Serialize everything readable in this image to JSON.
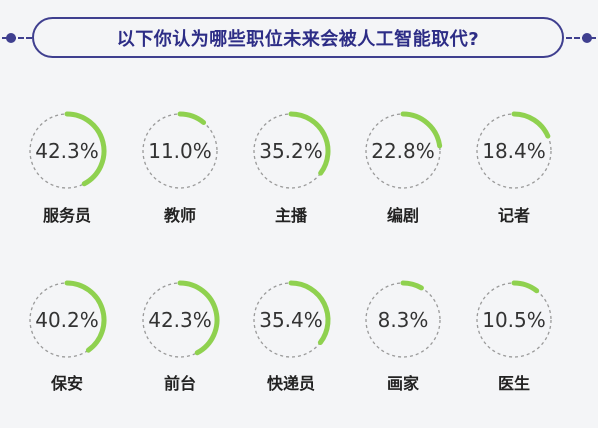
{
  "title": "以下你认为哪些职位未来会被人工智能取代?",
  "colors": {
    "accent": "#8fd14f",
    "dashed_ring": "#9a9a9a",
    "banner": "#3f3f8f",
    "background": "#f4f5f7"
  },
  "chart_data": {
    "type": "pie",
    "style": "donut-progress",
    "title": "以下你认为哪些职位未来会被人工智能取代?",
    "categories": [
      "服务员",
      "教师",
      "主播",
      "编剧",
      "记者",
      "保安",
      "前台",
      "快递员",
      "画家",
      "医生"
    ],
    "values": [
      42.3,
      11.0,
      35.2,
      22.8,
      18.4,
      40.2,
      42.3,
      35.4,
      8.3,
      10.5
    ],
    "value_labels": [
      "42.3%",
      "11.0%",
      "35.2%",
      "22.8%",
      "18.4%",
      "40.2%",
      "42.3%",
      "35.4%",
      "8.3%",
      "10.5%"
    ],
    "unit": "%",
    "max": 100
  }
}
